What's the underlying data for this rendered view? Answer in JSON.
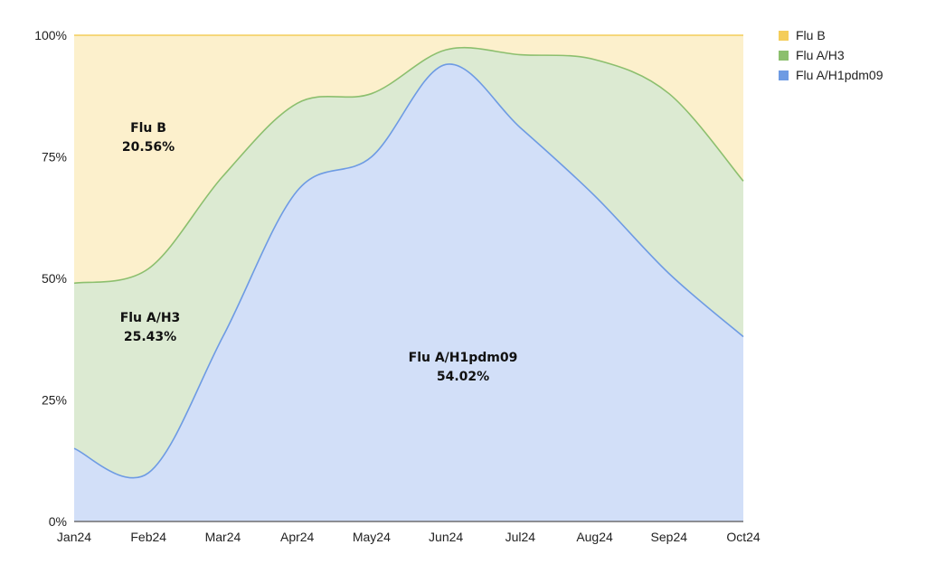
{
  "chart_data": {
    "type": "area",
    "stacked": true,
    "percent": true,
    "x": [
      "Jan24",
      "Feb24",
      "Mar24",
      "Apr24",
      "May24",
      "Jun24",
      "Jul24",
      "Aug24",
      "Sep24",
      "Oct24"
    ],
    "series": [
      {
        "name": "Flu A/H1pdm09",
        "color": "#6e9be3",
        "fill": "#d2dff8",
        "values": [
          15,
          10,
          38,
          68,
          75,
          94,
          81,
          67,
          51,
          38
        ]
      },
      {
        "name": "Flu A/H3",
        "color": "#8cbf6e",
        "fill": "#dcead2",
        "values": [
          34,
          42,
          33,
          18,
          13,
          3,
          15,
          28,
          37,
          32
        ]
      },
      {
        "name": "Flu B",
        "color": "#f4cd5a",
        "fill": "#fcf0cc",
        "values": [
          51,
          48,
          29,
          14,
          12,
          3,
          4,
          5,
          12,
          30
        ]
      }
    ],
    "ylim": [
      0,
      100
    ],
    "yticks": [
      "0%",
      "25%",
      "50%",
      "75%",
      "100%"
    ],
    "grid": true,
    "legend_position": "right",
    "legend": [
      {
        "name": "Flu B",
        "color": "#f4cd5a"
      },
      {
        "name": "Flu A/H3",
        "color": "#8cbf6e"
      },
      {
        "name": "Flu A/H1pdm09",
        "color": "#6e9be3"
      }
    ],
    "annotations": [
      {
        "series": "Flu B",
        "label": "Flu B",
        "value": "20.56%"
      },
      {
        "series": "Flu A/H3",
        "label": "Flu A/H3",
        "value": "25.43%"
      },
      {
        "series": "Flu A/H1pdm09",
        "label": "Flu A/H1pdm09",
        "value": "54.02%"
      }
    ]
  }
}
